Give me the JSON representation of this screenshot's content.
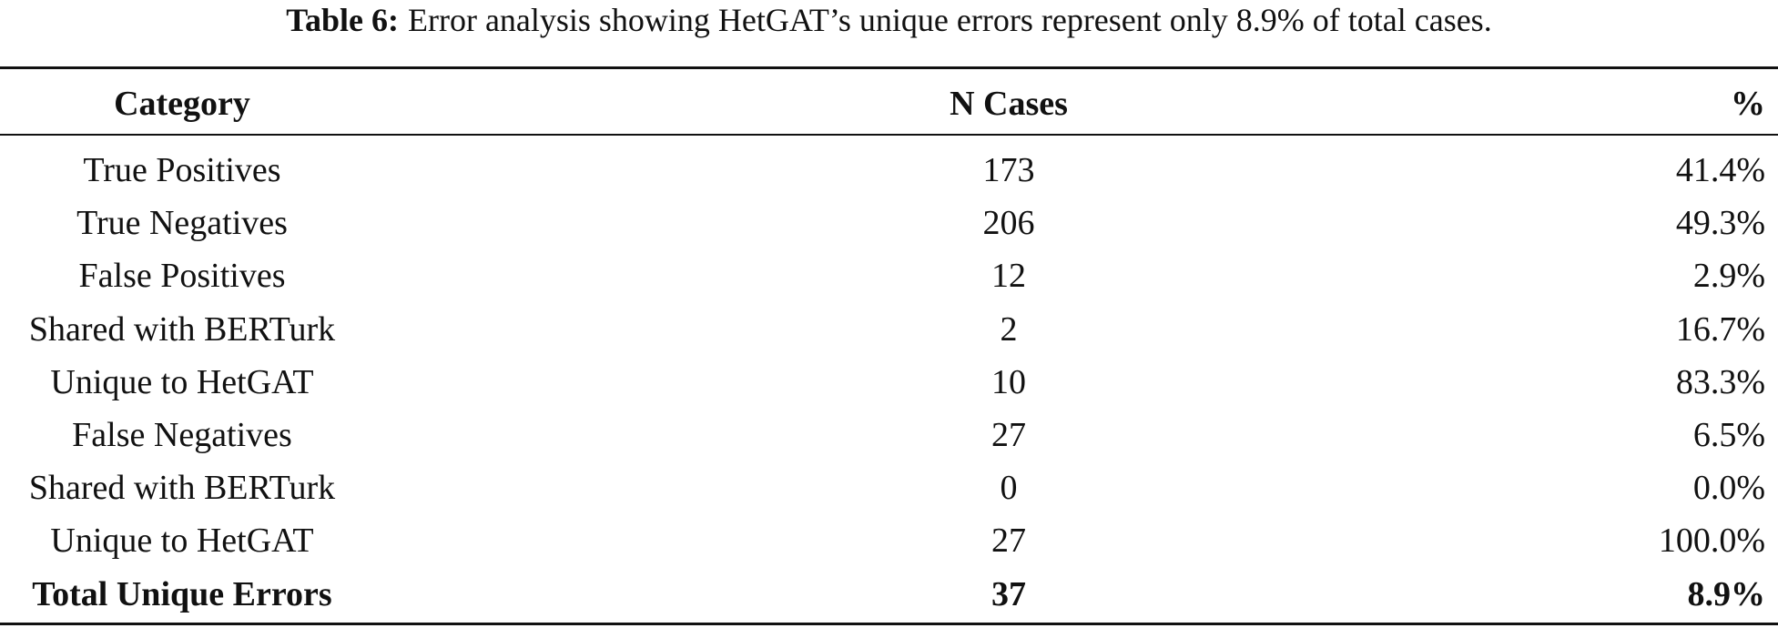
{
  "caption": {
    "label": "Table 6:",
    "text": "Error analysis showing HetGAT’s unique errors represent only 8.9% of total cases."
  },
  "table": {
    "headers": [
      "Category",
      "N Cases",
      "%"
    ],
    "rows": [
      [
        "True Positives",
        "173",
        "41.4%"
      ],
      [
        "True Negatives",
        "206",
        "49.3%"
      ],
      [
        "False Positives",
        "12",
        "2.9%"
      ],
      [
        "Shared with BERTurk",
        "2",
        "16.7%"
      ],
      [
        "Unique to HetGAT",
        "10",
        "83.3%"
      ],
      [
        "False Negatives",
        "27",
        "6.5%"
      ],
      [
        "Shared with BERTurk",
        "0",
        "0.0%"
      ],
      [
        "Unique to HetGAT",
        "27",
        "100.0%"
      ],
      [
        "Total Unique Errors",
        "37",
        "8.9%"
      ]
    ]
  }
}
